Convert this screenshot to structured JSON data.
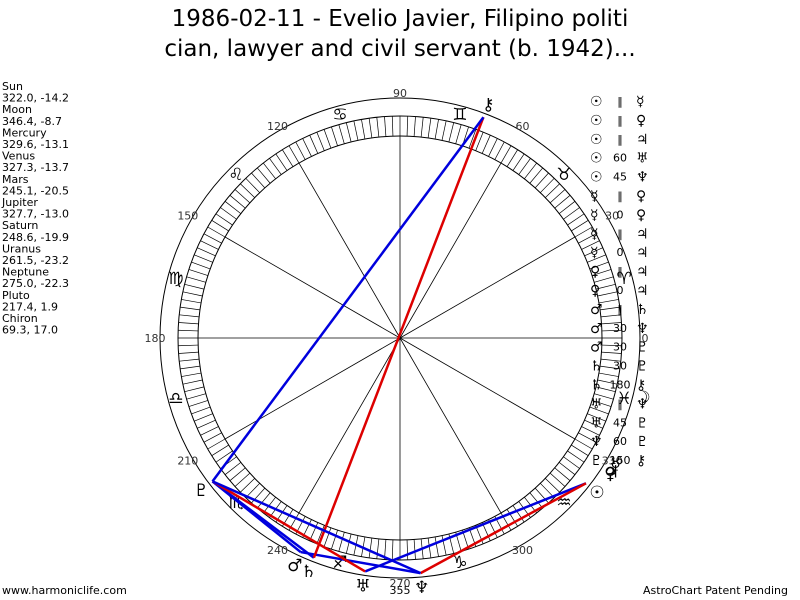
{
  "title_lines": [
    "1986-02-11 - Evelio Javier, Filipino politi",
    "cian, lawyer and civil servant (b. 1942)..."
  ],
  "planets": [
    {
      "name": "Sun",
      "glyph": "☉",
      "coords": "322.0, -14.2",
      "longitude": 322.0
    },
    {
      "name": "Moon",
      "glyph": "☽",
      "coords": "346.4, -8.7",
      "longitude": 346.4
    },
    {
      "name": "Mercury",
      "glyph": "☿",
      "coords": "329.6, -13.1",
      "longitude": 329.6
    },
    {
      "name": "Venus",
      "glyph": "♀",
      "coords": "327.3, -13.7",
      "longitude": 327.3
    },
    {
      "name": "Mars",
      "glyph": "♂",
      "coords": "245.1, -20.5",
      "longitude": 245.1
    },
    {
      "name": "Jupiter",
      "glyph": "♃",
      "coords": "327.7, -13.0",
      "longitude": 327.7
    },
    {
      "name": "Saturn",
      "glyph": "♄",
      "coords": "248.6, -19.9",
      "longitude": 248.6
    },
    {
      "name": "Uranus",
      "glyph": "♅",
      "coords": "261.5, -23.2",
      "longitude": 261.5
    },
    {
      "name": "Neptune",
      "glyph": "♆",
      "coords": "275.0, -22.3",
      "longitude": 275.0
    },
    {
      "name": "Pluto",
      "glyph": "♇",
      "coords": "217.4, 1.9",
      "longitude": 217.4
    },
    {
      "name": "Chiron",
      "glyph": "⚷",
      "coords": "69.3, 17.0",
      "longitude": 69.3
    }
  ],
  "aspects": [
    {
      "a": "☉",
      "aspect": "‖",
      "b": "☿"
    },
    {
      "a": "☉",
      "aspect": "‖",
      "b": "♀"
    },
    {
      "a": "☉",
      "aspect": "‖",
      "b": "♃"
    },
    {
      "a": "☉",
      "aspect": "60",
      "b": "♅",
      "color": "#0000dd"
    },
    {
      "a": "☉",
      "aspect": "45",
      "b": "♆",
      "color": "#dd0000"
    },
    {
      "a": "☿",
      "aspect": "‖",
      "b": "♀"
    },
    {
      "a": "☿",
      "aspect": "0",
      "b": "♀"
    },
    {
      "a": "☿",
      "aspect": "‖",
      "b": "♃"
    },
    {
      "a": "☿",
      "aspect": "0",
      "b": "♃"
    },
    {
      "a": "♀",
      "aspect": "‖",
      "b": "♃"
    },
    {
      "a": "♀",
      "aspect": "0",
      "b": "♃"
    },
    {
      "a": "♂",
      "aspect": "‖",
      "b": "♄"
    },
    {
      "a": "♂",
      "aspect": "30",
      "b": "♆",
      "color": "#0000dd"
    },
    {
      "a": "♂",
      "aspect": "30",
      "b": "♇",
      "color": "#0000dd"
    },
    {
      "a": "♄",
      "aspect": "30",
      "b": "♇",
      "color": "#0000dd"
    },
    {
      "a": "♄",
      "aspect": "180",
      "b": "⚷",
      "color": "#dd0000"
    },
    {
      "a": "♅",
      "aspect": "‖",
      "b": "♆"
    },
    {
      "a": "♅",
      "aspect": "45",
      "b": "♇",
      "color": "#dd0000"
    },
    {
      "a": "♆",
      "aspect": "60",
      "b": "♇",
      "color": "#0000dd"
    },
    {
      "a": "♇",
      "aspect": "150",
      "b": "⚷",
      "color": "#0000dd"
    }
  ],
  "signs": [
    "♈",
    "♉",
    "♊",
    "♋",
    "♌",
    "♍",
    "♎",
    "♏",
    "♐",
    "♑",
    "♒",
    "♓"
  ],
  "degree_ticks": [
    0,
    30,
    60,
    90,
    120,
    150,
    180,
    210,
    240,
    270,
    300,
    330
  ],
  "bottom_label": "355",
  "footer_left": "www.harmoniclife.com",
  "footer_right": "AstroChart Patent Pending"
}
